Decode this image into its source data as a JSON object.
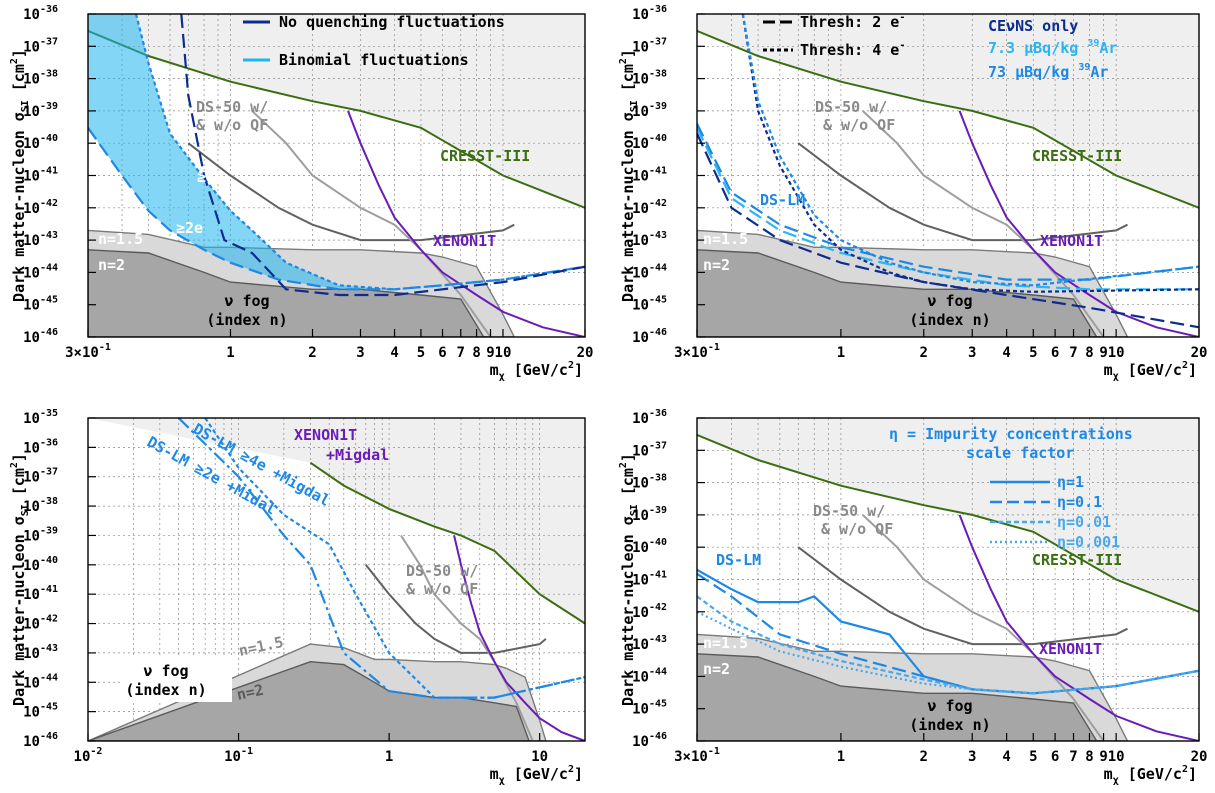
{
  "figure": {
    "ylabel": "Dark matter-nucleon σ",
    "ylabel_sub": "SI",
    "ylabel_unit": "[cm",
    "ylabel_unit_exp": "2",
    "ylabel_unit_close": "]",
    "xlabel": "m",
    "xlabel_sub": "χ",
    "xlabel_unit": "[GeV/c",
    "xlabel_unit_exp": "2",
    "xlabel_unit_close": "]"
  },
  "colors": {
    "no_quenching": "#0b2d8f",
    "binomial": "#1fb5ee",
    "binomial_band": "#1fb5ee",
    "ds_lm": "#1e88e5",
    "ds_lm_light": "#4aa8e8",
    "ds50": "#9e9e9e",
    "ds50_dark": "#616161",
    "cresst": "#3b6e10",
    "xenon": "#6a1bb8",
    "fog_light": "#d9d9d9",
    "fog_dark": "#a6a6a6",
    "excluded": "#efefef",
    "ceuns_only": "#0b2d8f",
    "ar39_7_3": "#29b6f6",
    "ar39_73": "#1e88e5"
  },
  "chart_data": [
    {
      "id": "top-left",
      "type": "line",
      "x_scale": "log",
      "y_scale": "log",
      "xlim": [
        0.3,
        20
      ],
      "ylim": [
        1e-46,
        1e-36
      ],
      "x_tick_labels": [
        "3×10",
        "1",
        "2",
        "3",
        "4",
        "5",
        "6",
        "7",
        "8",
        "9",
        "10",
        "20"
      ],
      "legend": [
        "No quenching fluctuations",
        "Binomial fluctuations"
      ],
      "annotations": [
        "DS-50 w/",
        "& w/o QF",
        "CRESST-III",
        "XENON1T",
        "≥4e",
        "≥2e",
        "n=1.5",
        "n=2",
        "ν fog",
        "(index n)"
      ],
      "series": [
        {
          "name": "No quenching fluctuations",
          "x": [
            0.66,
            0.7,
            0.8,
            0.95,
            1.2,
            1.6,
            2.5,
            4,
            6,
            10,
            20
          ],
          "y": [
            1e-36,
            3e-39,
            1e-41,
            1e-43,
            4e-44,
            3e-45,
            2e-45,
            2e-45,
            3e-45,
            5e-45,
            1.5e-44
          ]
        },
        {
          "name": "Binomial fluctuations (≥2e)",
          "x": [
            0.3,
            0.4,
            0.5,
            0.6,
            0.8,
            1,
            1.5,
            2.5,
            4,
            6,
            10,
            20
          ],
          "y": [
            3e-40,
            1e-41,
            8e-43,
            2e-43,
            5e-44,
            2e-44,
            6e-45,
            3e-45,
            3e-45,
            4e-45,
            6e-45,
            1.5e-44
          ]
        },
        {
          "name": "Binomial fluctuations (≥4e)",
          "x": [
            0.45,
            0.5,
            0.6,
            0.8,
            1,
            1.2,
            1.6,
            2.5,
            4,
            6,
            10,
            20
          ],
          "y": [
            1e-36,
            3e-38,
            2e-40,
            8e-42,
            8e-43,
            2e-43,
            2e-44,
            4e-45,
            3e-45,
            4e-45,
            6e-45,
            1.5e-44
          ]
        }
      ]
    },
    {
      "id": "top-right",
      "type": "line",
      "x_scale": "log",
      "y_scale": "log",
      "xlim": [
        0.3,
        20
      ],
      "ylim": [
        1e-46,
        1e-36
      ],
      "x_tick_labels": [
        "3×10",
        "1",
        "2",
        "3",
        "4",
        "5",
        "6",
        "7",
        "8",
        "9",
        "10",
        "20"
      ],
      "legend": [
        "Thresh: 2 e",
        "Thresh: 4 e",
        "CEνNS only",
        "7.3 μBq/kg ",
        "73 μBq/kg "
      ],
      "legend_sup": [
        "-",
        "-",
        "",
        "39",
        "39"
      ],
      "legend_suffix": [
        "",
        "",
        "",
        "Ar",
        "Ar"
      ],
      "annotations": [
        "DS-50 w/",
        "& w/o QF",
        "CRESST-III",
        "XENON1T",
        "DS-LM",
        "n=1.5",
        "n=2",
        "ν fog",
        "(index n)"
      ],
      "series": [
        {
          "name": "CEνNS only, 2e",
          "x": [
            0.3,
            0.4,
            0.6,
            1,
            2,
            4,
            8,
            20
          ],
          "y": [
            2e-40,
            1e-42,
            1e-43,
            2e-44,
            5e-45,
            2e-45,
            8e-46,
            2e-46
          ]
        },
        {
          "name": "7.3 μBq/kg, 2e",
          "x": [
            0.3,
            0.4,
            0.6,
            1,
            2,
            4,
            8,
            20
          ],
          "y": [
            3e-40,
            2e-42,
            2e-43,
            4e-44,
            1e-44,
            4e-45,
            3e-45,
            3e-45
          ]
        },
        {
          "name": "73 μBq/kg, 2e",
          "x": [
            0.3,
            0.4,
            0.6,
            1,
            2,
            4,
            8,
            20
          ],
          "y": [
            4e-40,
            3e-42,
            3e-43,
            6e-44,
            1.5e-44,
            6e-45,
            6e-45,
            1.5e-44
          ]
        },
        {
          "name": "CEνNS only, 4e",
          "x": [
            0.44,
            0.5,
            0.6,
            0.8,
            1,
            1.5,
            2,
            3,
            5,
            20
          ],
          "y": [
            1e-36,
            1e-39,
            2e-41,
            3e-43,
            5e-44,
            1e-44,
            5e-45,
            3e-45,
            2.5e-45,
            3e-45
          ]
        },
        {
          "name": "73 μBq/kg, 4e",
          "x": [
            0.44,
            0.5,
            0.6,
            0.8,
            1,
            1.5,
            2,
            3,
            5,
            20
          ],
          "y": [
            1e-36,
            2e-39,
            4e-41,
            6e-43,
            1e-43,
            2e-44,
            1e-44,
            5e-45,
            4e-45,
            1.5e-44
          ]
        }
      ]
    },
    {
      "id": "bottom-left",
      "type": "line",
      "x_scale": "log",
      "y_scale": "log",
      "xlim": [
        0.01,
        20
      ],
      "ylim": [
        1e-46,
        1e-35
      ],
      "x_tick_labels": [
        "10",
        "10",
        "1",
        "10"
      ],
      "x_tick_sup": [
        "-2",
        "-1",
        "",
        ""
      ],
      "annotations": [
        "XENON1T",
        "+Migdal",
        "DS-LM ≥4e +Migdal",
        "DS-LM ≥2e +Midal",
        "DS-50 w/",
        "& w/o QF",
        "n=1.5",
        "n=2",
        "ν fog",
        "(index n)"
      ],
      "series": [
        {
          "name": "DS-LM ≥2e +Migdal",
          "x": [
            0.04,
            0.1,
            0.2,
            0.3,
            0.5,
            1,
            2,
            5,
            20
          ],
          "y": [
            1e-35,
            1e-37,
            1e-39,
            1e-40,
            1e-43,
            5e-45,
            3e-45,
            3e-45,
            1.5e-44
          ]
        },
        {
          "name": "DS-LM ≥4e +Migdal",
          "x": [
            0.06,
            0.1,
            0.2,
            0.4,
            0.6,
            1,
            2,
            5,
            20
          ],
          "y": [
            1e-35,
            2e-37,
            5e-39,
            5e-40,
            1e-41,
            1e-43,
            3e-45,
            3e-45,
            1.5e-44
          ]
        }
      ]
    },
    {
      "id": "bottom-right",
      "type": "line",
      "x_scale": "log",
      "y_scale": "log",
      "xlim": [
        0.3,
        20
      ],
      "ylim": [
        1e-46,
        1e-36
      ],
      "x_tick_labels": [
        "3×10",
        "1",
        "2",
        "3",
        "4",
        "5",
        "6",
        "7",
        "8",
        "9",
        "10",
        "20"
      ],
      "legend_title": [
        "η = Impurity concentrations",
        "scale factor"
      ],
      "legend": [
        "η=1",
        "η=0.1",
        "η=0.01",
        "η=0.001"
      ],
      "annotations": [
        "DS-50 w/",
        "& w/o QF",
        "CRESST-III",
        "XENON1T",
        "DS-LM",
        "n=1.5",
        "n=2",
        "ν fog",
        "(index n)"
      ],
      "series": [
        {
          "name": "η=1",
          "x": [
            0.3,
            0.4,
            0.5,
            0.7,
            0.8,
            1,
            1.5,
            2,
            3,
            5,
            10,
            20
          ],
          "y": [
            2e-41,
            5e-42,
            2e-42,
            2e-42,
            3e-42,
            5e-43,
            2e-43,
            1e-44,
            4e-45,
            3e-45,
            5e-45,
            1.5e-44
          ]
        },
        {
          "name": "η=0.1",
          "x": [
            0.3,
            0.4,
            0.6,
            1,
            2,
            3,
            5,
            10,
            20
          ],
          "y": [
            1.5e-41,
            3e-42,
            2e-43,
            5e-44,
            1e-44,
            4e-45,
            3e-45,
            5e-45,
            1.5e-44
          ]
        },
        {
          "name": "η=0.01",
          "x": [
            0.3,
            0.4,
            0.6,
            1,
            2,
            3,
            5,
            10,
            20
          ],
          "y": [
            3e-42,
            5e-43,
            1e-43,
            3e-44,
            8e-45,
            4e-45,
            3e-45,
            5e-45,
            1.5e-44
          ]
        },
        {
          "name": "η=0.001",
          "x": [
            0.3,
            0.4,
            0.6,
            1,
            2,
            3,
            5,
            10,
            20
          ],
          "y": [
            1e-42,
            3e-43,
            6e-44,
            2e-44,
            6e-45,
            4e-45,
            3e-45,
            5e-45,
            1.5e-44
          ]
        }
      ]
    }
  ]
}
